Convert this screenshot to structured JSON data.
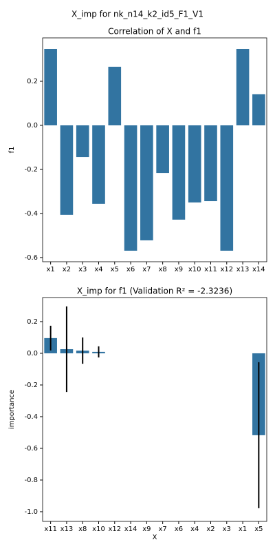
{
  "suptitle": "X_imp for nk_n14_k2_id5_F1_V1",
  "chart_data": [
    {
      "type": "bar",
      "title": "Correlation of X and f1",
      "ylabel": "f1",
      "categories": [
        "x1",
        "x2",
        "x3",
        "x4",
        "x5",
        "x6",
        "x7",
        "x8",
        "x9",
        "x10",
        "x11",
        "x12",
        "x13",
        "x14"
      ],
      "values": [
        0.347,
        -0.406,
        -0.144,
        -0.356,
        0.266,
        -0.569,
        -0.522,
        -0.216,
        -0.428,
        -0.35,
        -0.344,
        -0.569,
        0.347,
        0.141
      ],
      "color": "#3274a1",
      "ylim": [
        -0.619,
        0.397
      ],
      "yticks": [
        0.2,
        {
          "value": 0,
          "label": "0.0"
        },
        -0.2,
        -0.4,
        -0.6
      ]
    },
    {
      "type": "bar",
      "title": "X_imp for f1 (Validation R² = -2.3236)",
      "xlabel": "X",
      "ylabel": "importance",
      "categories": [
        "x11",
        "x13",
        "x8",
        "x10",
        "x12",
        "x14",
        "x9",
        "x7",
        "x6",
        "x4",
        "x2",
        "x3",
        "x1",
        "x5"
      ],
      "values": [
        0.096,
        0.026,
        0.017,
        0.009,
        0,
        0,
        0,
        0,
        0,
        0,
        0,
        0,
        0,
        -0.517
      ],
      "errors": [
        0.078,
        0.27,
        0.083,
        0.035,
        0,
        0,
        0,
        0,
        0,
        0,
        0,
        0,
        0,
        0.461
      ],
      "color": "#3274a1",
      "error_color": "#000000",
      "ylim": [
        -1.061,
        0.352
      ],
      "yticks": [
        0.2,
        {
          "value": 0,
          "label": "0.0"
        },
        -0.2,
        -0.4,
        -0.6,
        -0.8,
        {
          "value": -1,
          "label": "-1.0"
        }
      ]
    }
  ]
}
